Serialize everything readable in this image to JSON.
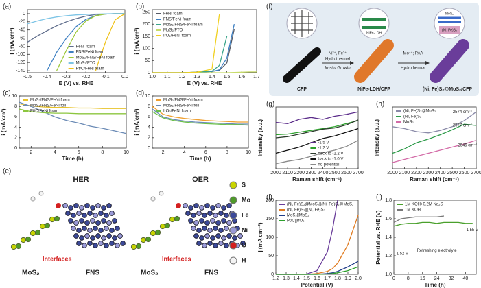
{
  "chart_data": [
    {
      "type": "line",
      "label": "(a)",
      "xlabel": "E (V) vs. RHE",
      "ylabel": "I (mA/cm²)",
      "x": [
        -0.5,
        -0.45,
        -0.4,
        -0.35,
        -0.3,
        -0.25,
        -0.2,
        -0.15,
        -0.1,
        -0.05,
        0.0
      ],
      "xlim": [
        -0.5,
        0.0
      ],
      "xticks": [
        -0.5,
        -0.4,
        -0.3,
        -0.2,
        -0.1,
        {
          "value": 0.0,
          "label": "0.0"
        }
      ],
      "ylim": [
        -145,
        10
      ],
      "yticks": [
        0,
        -20,
        -40,
        -60,
        -80,
        -100,
        -120,
        -140
      ],
      "legend": "lower right",
      "series": [
        {
          "name": "FeNi foam",
          "color": "#5d6b8a",
          "values": [
            -70,
            -55,
            -42,
            -30,
            -20,
            -12,
            -6,
            -2,
            -1,
            0,
            0
          ]
        },
        {
          "name": "FNS/FeNi foam",
          "color": "#3d7fc2",
          "values": [
            null,
            null,
            -140,
            -95,
            -60,
            -32,
            -14,
            -5,
            -1,
            0,
            0
          ]
        },
        {
          "name": "MoS₂/FNS/FeNi foam",
          "color": "#9cc83a",
          "values": [
            null,
            null,
            null,
            -140,
            -90,
            -45,
            -18,
            -5,
            -1,
            0,
            0
          ]
        },
        {
          "name": "MoS₂/FTO",
          "color": "#7cc4e6",
          "values": [
            -25,
            -18,
            -12,
            -8,
            -5,
            -3,
            -2,
            -1,
            -0.5,
            0,
            0
          ]
        },
        {
          "name": "Pt/C/FeNi foam",
          "color": "#efc21a",
          "values": [
            null,
            null,
            null,
            null,
            null,
            null,
            null,
            -140,
            -70,
            -15,
            0
          ]
        }
      ]
    },
    {
      "type": "line",
      "label": "(b)",
      "xlabel": "E (V) vs. RHE",
      "ylabel": "i (mA/cm²)",
      "x": [
        1.0,
        1.1,
        1.2,
        1.3,
        1.4,
        1.45,
        1.5,
        1.55,
        1.6,
        1.65,
        1.7
      ],
      "xlim": [
        1.0,
        1.7
      ],
      "xticks": [
        {
          "value": 1.0,
          "label": "1.0"
        },
        1.1,
        1.2,
        1.3,
        1.4,
        1.5,
        1.6,
        1.7
      ],
      "ylim": [
        0,
        260
      ],
      "yticks": [
        0,
        50,
        100,
        150,
        200,
        250
      ],
      "legend": "upper left",
      "series": [
        {
          "name": "FeNi foam",
          "color": "#555a66",
          "values": [
            0,
            0,
            0,
            2,
            5,
            10,
            40,
            180,
            null,
            null,
            null
          ]
        },
        {
          "name": "FNS/FeNi foam",
          "color": "#3d7fc2",
          "values": [
            0,
            0,
            0,
            2,
            5,
            12,
            60,
            200,
            null,
            null,
            null
          ]
        },
        {
          "name": "MoS₂/FNS/FeNi foam",
          "color": "#3aa58a",
          "values": [
            0,
            0,
            0,
            2,
            6,
            30,
            150,
            null,
            null,
            null,
            null
          ]
        },
        {
          "name": "MoS₂/FTO",
          "color": "#c8dc6a",
          "values": [
            0,
            0,
            0,
            0,
            0,
            0,
            0,
            1,
            2,
            3,
            3
          ]
        },
        {
          "name": "IrO₂/FeNi foam",
          "color": "#f0d020",
          "values": [
            0,
            0,
            0,
            2,
            15,
            240,
            null,
            null,
            null,
            null,
            null
          ]
        }
      ]
    },
    {
      "type": "line",
      "label": "(c)",
      "xlabel": "Time (h)",
      "ylabel": "i (mA/cm²)",
      "x": [
        1,
        2,
        3,
        4,
        5,
        6,
        7,
        8,
        9,
        10
      ],
      "xlim": [
        1,
        10
      ],
      "xticks": [
        2,
        4,
        6,
        8,
        10
      ],
      "ylim": [
        0,
        10
      ],
      "yticks": [
        0,
        2,
        4,
        6,
        8,
        10
      ],
      "legend": "upper left",
      "series": [
        {
          "name": "MoS₂/FNS/FeNi foam",
          "color": "#e8c229",
          "values": [
            8.5,
            8.1,
            7.9,
            7.8,
            7.8,
            7.7,
            7.7,
            7.6,
            7.6,
            7.6
          ]
        },
        {
          "name": "MoS₂/FNS/FeNi foil",
          "color": "#6a8ab5",
          "values": [
            8.8,
            8.0,
            7.0,
            6.0,
            5.3,
            4.8,
            4.2,
            3.8,
            3.3,
            2.8
          ]
        },
        {
          "name": "Pt/C/FeNi foam",
          "color": "#8cc63f",
          "values": [
            7.5,
            7.0,
            6.8,
            6.7,
            6.7,
            6.6,
            6.6,
            6.6,
            6.6,
            6.6
          ]
        }
      ]
    },
    {
      "type": "line",
      "label": "(d)",
      "xlabel": "Time (h)",
      "ylabel": "i (mA/cm²)",
      "x": [
        1,
        2,
        3,
        4,
        5,
        6,
        7,
        8,
        9,
        10
      ],
      "xlim": [
        1,
        10
      ],
      "xticks": [
        2,
        4,
        6,
        8,
        10
      ],
      "ylim": [
        0,
        10
      ],
      "yticks": [
        0,
        2,
        4,
        6,
        8,
        10
      ],
      "legend": "upper left",
      "series": [
        {
          "name": "MoS₂/FNS/FeNi foam",
          "color": "#f0a030",
          "values": [
            8,
            6.5,
            6,
            5.7,
            5.5,
            5.3,
            5.2,
            5.1,
            5.0,
            5.0
          ]
        },
        {
          "name": "MoS₂/FNS/FeNi foil",
          "color": "#6a8ab5",
          "values": [
            7.5,
            6,
            5.5,
            5.2,
            5,
            4.9,
            4.8,
            4.7,
            4.6,
            4.6
          ]
        },
        {
          "name": "IrO₂/FeNi foam",
          "color": "#6cbf4a",
          "values": [
            7,
            5.8,
            5.3,
            5,
            4.8,
            4.7,
            4.6,
            4.5,
            4.5,
            4.4
          ]
        }
      ]
    },
    {
      "type": "line",
      "label": "(g)",
      "xlabel": "Raman shift (cm⁻¹)",
      "ylabel": "Intensity (a.u.)",
      "x": [
        2000,
        2100,
        2200,
        2300,
        2400,
        2500,
        2600,
        2700
      ],
      "xlim": [
        2000,
        2700
      ],
      "xticks": [
        2000,
        2100,
        2200,
        2300,
        2400,
        2500,
        2600,
        2700
      ],
      "ylim": [
        0,
        10
      ],
      "legend": "lower right",
      "series": [
        {
          "name": "-1.5 V",
          "color": "#5b2c8a",
          "values": [
            7.5,
            7.3,
            8.0,
            8.3,
            8.0,
            8.5,
            8.8,
            9.2
          ]
        },
        {
          "name": "-1.2 V",
          "color": "#2ca02c",
          "values": [
            5.5,
            5.6,
            5.9,
            6.2,
            6.5,
            6.8,
            7.3,
            7.8
          ]
        },
        {
          "name": "back to -1.2 V",
          "color": "#2b3a2b",
          "values": [
            5.0,
            5.2,
            5.6,
            6.0,
            6.4,
            6.6,
            7.1,
            7.9
          ]
        },
        {
          "name": "back to -1.0 V",
          "color": "#111111",
          "values": [
            2.5,
            3.0,
            3.5,
            4.2,
            4.9,
            5.3,
            5.9,
            6.5
          ]
        },
        {
          "name": "no potential",
          "color": "#8a8a8a",
          "values": [
            0.8,
            1.2,
            1.5,
            2.0,
            2.6,
            3.0,
            3.6,
            4.6
          ]
        }
      ]
    },
    {
      "type": "line",
      "label": "(h)",
      "xlabel": "Raman shift (cm⁻¹)",
      "ylabel": "Intensity (a.u.)",
      "x": [
        2000,
        2100,
        2200,
        2300,
        2400,
        2500,
        2600,
        2700
      ],
      "xlim": [
        2000,
        2700
      ],
      "xticks": [
        2000,
        2100,
        2200,
        2300,
        2400,
        2500,
        2600,
        2700
      ],
      "ylim": [
        0,
        10
      ],
      "legend": "upper left",
      "annotations": [
        "2574 cm⁻¹",
        "2577 cm⁻¹",
        "2646 cm⁻¹"
      ],
      "series": [
        {
          "name": "(Ni, Fe)S₂@MoS₂",
          "color": "#8a8aa8",
          "values": [
            6.8,
            6.5,
            6.0,
            5.8,
            6.2,
            6.8,
            7.8,
            9.2
          ]
        },
        {
          "name": "(Ni, Fe)S₂",
          "color": "#2e9b4a",
          "values": [
            2.5,
            3.2,
            4.2,
            4.8,
            5.5,
            6.3,
            7.2,
            7.0
          ]
        },
        {
          "name": "MoS₂",
          "color": "#d36ba7",
          "values": [
            1,
            1.5,
            2.0,
            2.5,
            3.0,
            3.5,
            4.0,
            4.6
          ]
        }
      ]
    },
    {
      "type": "line",
      "label": "(i)",
      "xlabel": "Potential (V)",
      "ylabel": "j (mA cm⁻²)",
      "x": [
        1.2,
        1.3,
        1.4,
        1.5,
        1.6,
        1.7,
        1.75,
        1.8,
        1.9,
        2.0
      ],
      "xlim": [
        1.2,
        2.0
      ],
      "xticks": [
        1.2,
        1.3,
        1.4,
        1.5,
        1.6,
        1.7,
        1.8,
        1.9,
        {
          "value": 2.0,
          "label": "2.0"
        }
      ],
      "ylim": [
        0,
        200
      ],
      "yticks": [
        0,
        50,
        100,
        150,
        200
      ],
      "legend": "upper left",
      "series": [
        {
          "name": "(Ni, Fe)S₂@MoS₂||(Ni, Fe)S₂@MoS₂",
          "color": "#6a3d9a",
          "values": [
            0,
            0,
            0,
            1,
            10,
            60,
            120,
            200,
            null,
            null
          ]
        },
        {
          "name": "(Ni, Fe)S₂||(Ni, Fe)S₂",
          "color": "#e07b20",
          "values": [
            0,
            0,
            0,
            0,
            2,
            8,
            15,
            30,
            80,
            160
          ]
        },
        {
          "name": "MoS₂||MoS₂",
          "color": "#1f3c88",
          "values": [
            0,
            0,
            0,
            0,
            0,
            2,
            4,
            8,
            20,
            35
          ]
        },
        {
          "name": "Pt/C||IrO₂",
          "color": "#2ca02c",
          "values": [
            0,
            0,
            0,
            0,
            0,
            1,
            2,
            4,
            10,
            20
          ]
        }
      ]
    },
    {
      "type": "line",
      "label": "(j)",
      "xlabel": "Time (h)",
      "ylabel": "Potential vs. RHE (V)",
      "x": [
        0,
        4,
        8,
        12,
        16,
        20,
        24,
        28,
        32,
        36,
        40,
        44
      ],
      "xlim": [
        0,
        46
      ],
      "xticks": [
        0,
        8,
        16,
        24,
        32,
        40
      ],
      "ylim": [
        1.0,
        1.8
      ],
      "yticks": [
        {
          "value": 1.0,
          "label": "1.0"
        },
        1.2,
        1.4,
        1.6,
        1.8
      ],
      "legend": "upper left",
      "annotations": [
        "1.52 V",
        "Refreshing electrolyte",
        "1.55 V"
      ],
      "series": [
        {
          "name": "1M KOH+0.2M Na₂S",
          "color": "#4aa02c",
          "values": [
            1.52,
            1.54,
            1.55,
            1.55,
            1.56,
            1.56,
            1.55,
            1.56,
            1.56,
            1.56,
            1.55,
            1.55
          ]
        },
        {
          "name": "1M KOH",
          "color": "#777777",
          "values": [
            1.56,
            1.6,
            1.61,
            1.62,
            1.62,
            1.62,
            1.62,
            1.63,
            null,
            null,
            null,
            null
          ]
        }
      ]
    }
  ],
  "diagram_e": {
    "label": "(e)",
    "reactions": [
      "HER",
      "OER"
    ],
    "interfaces": [
      "Interfaces",
      "Interfaces"
    ],
    "materials": [
      "MoS₂",
      "FNS",
      "MoS₂",
      "FNS"
    ],
    "legend": [
      {
        "name": "S",
        "color": "#c8d400"
      },
      {
        "name": "Mo",
        "color": "#4f9a2a"
      },
      {
        "name": "Fe",
        "color": "#3c4a9a"
      },
      {
        "name": "Ni",
        "color": "#9a9ad8"
      },
      {
        "name": "O",
        "color": "#d42020"
      },
      {
        "name": "H",
        "color": "#f4f4f4"
      }
    ]
  },
  "diagram_f": {
    "label": "(f)",
    "stages": [
      "CFP",
      "NiFe-LDH/CFP",
      "(Ni, Fe)S₂@MoS₂/CFP"
    ],
    "step1": [
      "Ni²⁺, Fe³⁺",
      "Hydrothermal",
      "In-situ Growth"
    ],
    "step2": [
      "Mo⁴⁺; PAA",
      "Hydrothermal"
    ],
    "insets": [
      "NiFe-LDH",
      "MoS₂",
      "(Ni, Fe)S₂"
    ]
  }
}
